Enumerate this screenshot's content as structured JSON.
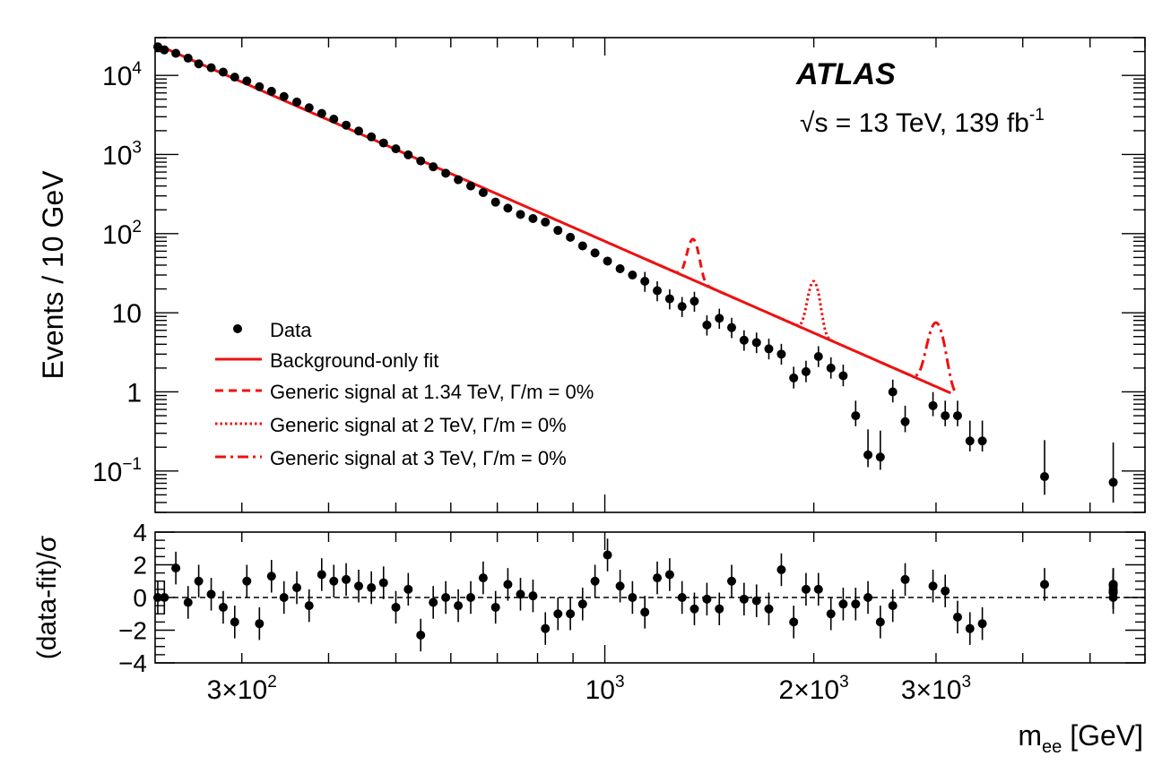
{
  "texts": {
    "brand": "ATLAS",
    "energy": "√s = 13 TeV, 139 fb",
    "energy_sup": "-1"
  },
  "colors": {
    "signal": "#ee1111",
    "data": "#000000"
  },
  "chart_data": [
    {
      "type": "scatter",
      "panel": "main",
      "xscale": "log",
      "yscale": "log",
      "xlim": [
        225,
        6000
      ],
      "ylim": [
        0.03,
        30000
      ],
      "ylabel": "Events / 10 GeV",
      "y_ticks": [
        {
          "v": 10000,
          "b": "10",
          "e": "4"
        },
        {
          "v": 1000,
          "b": "10",
          "e": "3"
        },
        {
          "v": 100,
          "b": "10",
          "e": "2"
        },
        {
          "v": 10,
          "b": "10",
          "e": ""
        },
        {
          "v": 1,
          "b": "1",
          "e": ""
        },
        {
          "v": 0.1,
          "b": "10",
          "e": "−1"
        }
      ],
      "legend": {
        "placement": "lower-left",
        "entries": [
          "Data",
          "Background-only fit",
          "Generic signal at 1.34 TeV, Γ/m = 0%",
          "Generic signal at 2 TeV, Γ/m = 0%",
          "Generic signal at 3 TeV, Γ/m = 0%"
        ]
      },
      "background_fit": {
        "norm_at_225": 25000,
        "slope": -3.85,
        "x_range": [
          225,
          3150
        ]
      },
      "signals": [
        {
          "mass": 1340,
          "peak": 85,
          "width": 22,
          "style": "dashed",
          "x_range": [
            1150,
            1550
          ]
        },
        {
          "mass": 2000,
          "peak": 25,
          "width": 22,
          "style": "dotted",
          "x_range": [
            1750,
            2150
          ]
        },
        {
          "mass": 3000,
          "peak": 7.5,
          "width": 30,
          "style": "dash-dot",
          "x_range": [
            2500,
            3200
          ]
        }
      ],
      "data_points": [
        {
          "x": 227,
          "y": 23000
        },
        {
          "x": 232,
          "y": 21000
        },
        {
          "x": 241,
          "y": 19000
        },
        {
          "x": 251,
          "y": 16500
        },
        {
          "x": 260,
          "y": 14000
        },
        {
          "x": 271,
          "y": 12500
        },
        {
          "x": 282,
          "y": 11000
        },
        {
          "x": 293,
          "y": 9500
        },
        {
          "x": 305,
          "y": 8500
        },
        {
          "x": 318,
          "y": 7200
        },
        {
          "x": 331,
          "y": 6300
        },
        {
          "x": 345,
          "y": 5400
        },
        {
          "x": 360,
          "y": 4600
        },
        {
          "x": 375,
          "y": 3900
        },
        {
          "x": 391,
          "y": 3300
        },
        {
          "x": 407,
          "y": 2800
        },
        {
          "x": 424,
          "y": 2350
        },
        {
          "x": 442,
          "y": 1980
        },
        {
          "x": 461,
          "y": 1670
        },
        {
          "x": 480,
          "y": 1400
        },
        {
          "x": 500,
          "y": 1180
        },
        {
          "x": 521,
          "y": 990
        },
        {
          "x": 543,
          "y": 830
        },
        {
          "x": 566,
          "y": 700
        },
        {
          "x": 590,
          "y": 580
        },
        {
          "x": 615,
          "y": 480
        },
        {
          "x": 641,
          "y": 400
        },
        {
          "x": 668,
          "y": 330
        },
        {
          "x": 696,
          "y": 250
        },
        {
          "x": 725,
          "y": 210
        },
        {
          "x": 756,
          "y": 175
        },
        {
          "x": 788,
          "y": 155
        },
        {
          "x": 821,
          "y": 140
        },
        {
          "x": 856,
          "y": 110
        },
        {
          "x": 892,
          "y": 90
        },
        {
          "x": 929,
          "y": 70
        },
        {
          "x": 968,
          "y": 57
        },
        {
          "x": 1009,
          "y": 45
        },
        {
          "x": 1052,
          "y": 36
        },
        {
          "x": 1096,
          "y": 30
        },
        {
          "x": 1142,
          "y": 25
        },
        {
          "x": 1190,
          "y": 19
        },
        {
          "x": 1240,
          "y": 15
        },
        {
          "x": 1292,
          "y": 12
        },
        {
          "x": 1346,
          "y": 14
        },
        {
          "x": 1403,
          "y": 7
        },
        {
          "x": 1462,
          "y": 8.5
        },
        {
          "x": 1523,
          "y": 6.5
        },
        {
          "x": 1587,
          "y": 4.5
        },
        {
          "x": 1654,
          "y": 4.2
        },
        {
          "x": 1723,
          "y": 3.5
        },
        {
          "x": 1796,
          "y": 3.0
        },
        {
          "x": 1871,
          "y": 1.5
        },
        {
          "x": 1949,
          "y": 1.8
        },
        {
          "x": 2031,
          "y": 2.8
        },
        {
          "x": 2117,
          "y": 2.0
        },
        {
          "x": 2205,
          "y": 1.6
        },
        {
          "x": 2298,
          "y": 0.5
        },
        {
          "x": 2394,
          "y": 0.16
        },
        {
          "x": 2494,
          "y": 0.15
        },
        {
          "x": 2599,
          "y": 1.0
        },
        {
          "x": 2708,
          "y": 0.42
        },
        {
          "x": 2970,
          "y": 0.67
        },
        {
          "x": 3093,
          "y": 0.5
        },
        {
          "x": 3222,
          "y": 0.5
        },
        {
          "x": 3357,
          "y": 0.24
        },
        {
          "x": 3498,
          "y": 0.24
        },
        {
          "x": 4300,
          "y": 0.085
        },
        {
          "x": 5400,
          "y": 0.072
        }
      ]
    },
    {
      "type": "scatter",
      "panel": "ratio",
      "xscale": "log",
      "xlim": [
        225,
        6000
      ],
      "ylim": [
        -4,
        4
      ],
      "ylabel": "(data-fit)/σ",
      "xlabel": "m",
      "xlabel_sub": "ee",
      "xlabel_unit": " [GeV]",
      "y_ticks": [
        "4",
        "2",
        "0",
        "−2",
        "−4"
      ],
      "x_ticks": [
        {
          "v": 300,
          "b": "3×10",
          "e": "2"
        },
        {
          "v": 1000,
          "b": "10",
          "e": "3"
        },
        {
          "v": 2000,
          "b": "2×10",
          "e": "3"
        },
        {
          "v": 3000,
          "b": "3×10",
          "e": "3"
        }
      ],
      "values": [
        0.0,
        0.0,
        1.8,
        -0.3,
        1.0,
        0.2,
        -0.6,
        -1.5,
        1.0,
        -1.6,
        1.3,
        0.0,
        0.6,
        -0.5,
        1.4,
        1.0,
        1.1,
        0.7,
        0.6,
        0.9,
        -0.6,
        0.5,
        -2.3,
        -0.3,
        0.0,
        -0.5,
        0.0,
        1.2,
        -0.6,
        0.8,
        0.2,
        0.1,
        -1.9,
        -1.0,
        -1.0,
        -0.4,
        1.0,
        2.6,
        0.7,
        0.0,
        -0.9,
        1.2,
        1.4,
        0.0,
        -0.7,
        -0.1,
        -0.7,
        1.0,
        -0.1,
        -0.2,
        -0.7,
        1.7,
        -1.5,
        0.5,
        0.5,
        -1.0,
        -0.4,
        -0.4,
        0.0,
        -1.5,
        -0.5,
        1.1,
        0.7,
        0.4,
        -1.2,
        -1.9,
        -1.6,
        0.8,
        0.0,
        0.8,
        0.7,
        0.8,
        0.3,
        0.3,
        0.4,
        0.5
      ]
    }
  ]
}
